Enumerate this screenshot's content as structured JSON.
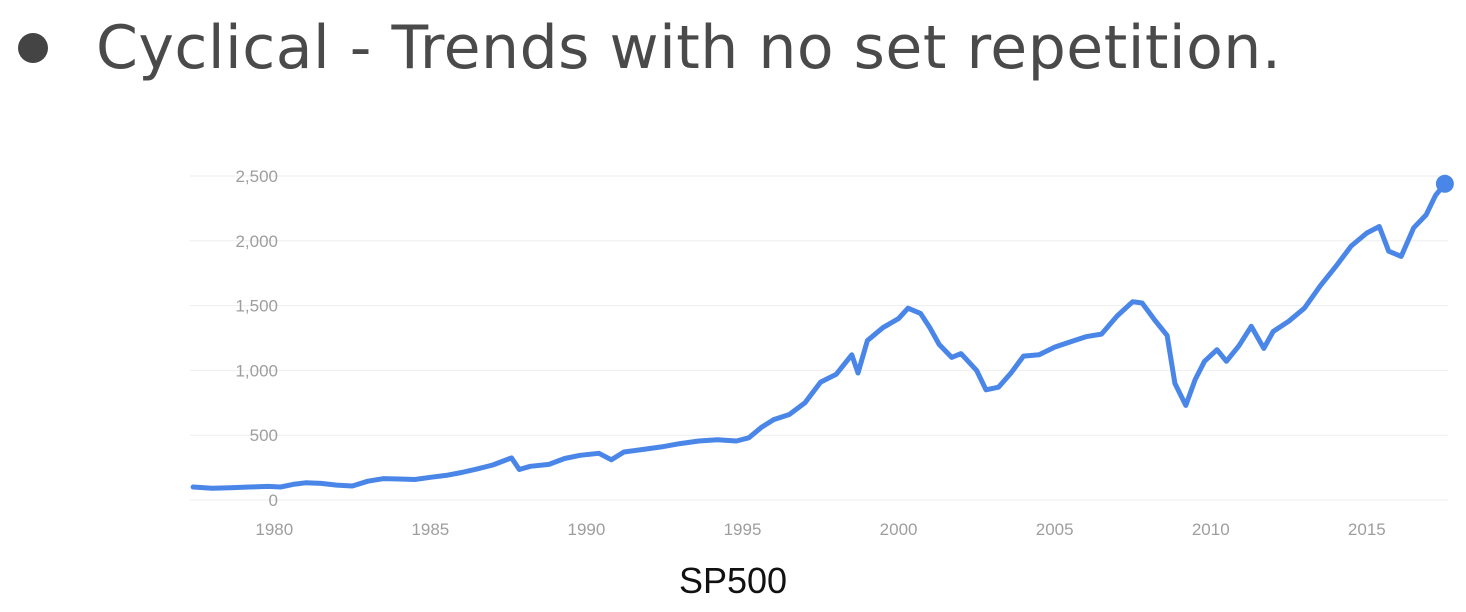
{
  "slide": {
    "bullet_text": "Cyclical - Trends with no set repetition."
  },
  "chart_caption": "SP500",
  "colors": {
    "line": "#4a86e8",
    "grid": "#eeeeee",
    "tick_text": "#9e9e9e",
    "heading": "#4a4a4a"
  },
  "chart_data": {
    "type": "line",
    "title": "",
    "xlabel": "",
    "ylabel": "",
    "xlim": [
      1977.3,
      2017.6
    ],
    "ylim": [
      0,
      2500
    ],
    "x_ticks": [
      "1980",
      "1985",
      "1990",
      "1995",
      "2000",
      "2005",
      "2010",
      "2015"
    ],
    "y_ticks": [
      "0",
      "500",
      "1,000",
      "1,500",
      "2,000",
      "2,500"
    ],
    "grid": true,
    "legend": "none",
    "end_marker": true,
    "series": [
      {
        "points": [
          [
            1977.4,
            100
          ],
          [
            1978.0,
            90
          ],
          [
            1978.6,
            95
          ],
          [
            1979.2,
            100
          ],
          [
            1979.8,
            105
          ],
          [
            1980.2,
            100
          ],
          [
            1980.6,
            120
          ],
          [
            1981.0,
            133
          ],
          [
            1981.5,
            128
          ],
          [
            1982.0,
            115
          ],
          [
            1982.5,
            108
          ],
          [
            1983.0,
            145
          ],
          [
            1983.5,
            165
          ],
          [
            1984.0,
            162
          ],
          [
            1984.5,
            158
          ],
          [
            1985.0,
            175
          ],
          [
            1985.5,
            190
          ],
          [
            1986.0,
            212
          ],
          [
            1986.5,
            240
          ],
          [
            1987.0,
            270
          ],
          [
            1987.6,
            325
          ],
          [
            1987.85,
            235
          ],
          [
            1988.2,
            260
          ],
          [
            1988.8,
            275
          ],
          [
            1989.3,
            320
          ],
          [
            1989.8,
            345
          ],
          [
            1990.4,
            360
          ],
          [
            1990.8,
            310
          ],
          [
            1991.2,
            370
          ],
          [
            1991.8,
            390
          ],
          [
            1992.4,
            410
          ],
          [
            1993.0,
            435
          ],
          [
            1993.6,
            455
          ],
          [
            1994.2,
            465
          ],
          [
            1994.8,
            455
          ],
          [
            1995.2,
            480
          ],
          [
            1995.6,
            560
          ],
          [
            1996.0,
            620
          ],
          [
            1996.5,
            660
          ],
          [
            1997.0,
            750
          ],
          [
            1997.5,
            910
          ],
          [
            1998.0,
            970
          ],
          [
            1998.5,
            1120
          ],
          [
            1998.7,
            980
          ],
          [
            1999.0,
            1230
          ],
          [
            1999.5,
            1330
          ],
          [
            2000.0,
            1400
          ],
          [
            2000.3,
            1480
          ],
          [
            2000.7,
            1440
          ],
          [
            2001.0,
            1330
          ],
          [
            2001.3,
            1200
          ],
          [
            2001.7,
            1100
          ],
          [
            2002.0,
            1130
          ],
          [
            2002.5,
            1000
          ],
          [
            2002.8,
            850
          ],
          [
            2003.2,
            870
          ],
          [
            2003.6,
            980
          ],
          [
            2004.0,
            1110
          ],
          [
            2004.5,
            1120
          ],
          [
            2005.0,
            1180
          ],
          [
            2005.5,
            1220
          ],
          [
            2006.0,
            1260
          ],
          [
            2006.5,
            1280
          ],
          [
            2007.0,
            1420
          ],
          [
            2007.5,
            1530
          ],
          [
            2007.8,
            1520
          ],
          [
            2008.2,
            1390
          ],
          [
            2008.6,
            1270
          ],
          [
            2008.85,
            900
          ],
          [
            2009.2,
            730
          ],
          [
            2009.5,
            930
          ],
          [
            2009.8,
            1070
          ],
          [
            2010.2,
            1160
          ],
          [
            2010.5,
            1070
          ],
          [
            2010.9,
            1190
          ],
          [
            2011.3,
            1340
          ],
          [
            2011.7,
            1170
          ],
          [
            2012.0,
            1300
          ],
          [
            2012.5,
            1380
          ],
          [
            2013.0,
            1480
          ],
          [
            2013.5,
            1650
          ],
          [
            2014.0,
            1800
          ],
          [
            2014.5,
            1960
          ],
          [
            2015.0,
            2060
          ],
          [
            2015.4,
            2110
          ],
          [
            2015.7,
            1920
          ],
          [
            2016.1,
            1880
          ],
          [
            2016.5,
            2100
          ],
          [
            2016.9,
            2200
          ],
          [
            2017.2,
            2350
          ],
          [
            2017.5,
            2440
          ]
        ]
      }
    ]
  }
}
